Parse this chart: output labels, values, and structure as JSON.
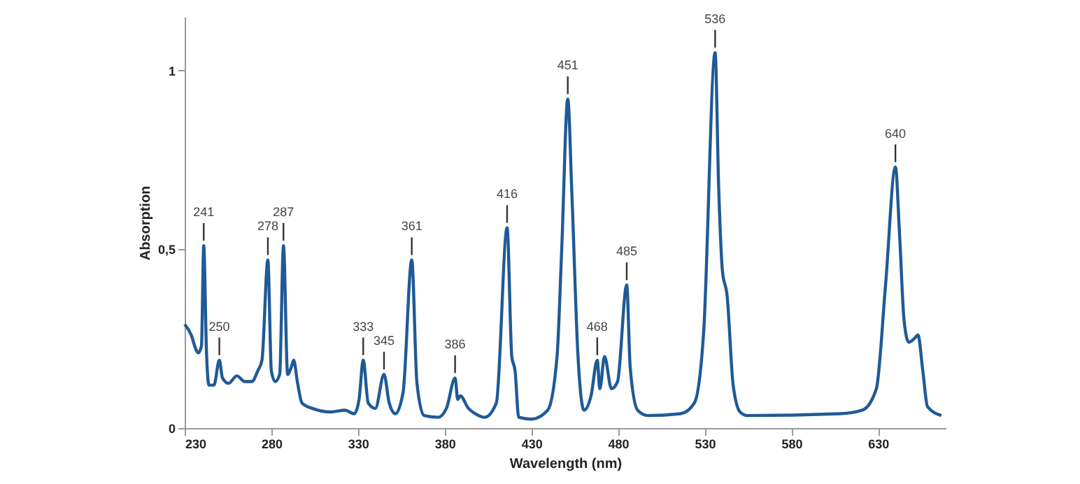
{
  "chart_data": {
    "type": "line",
    "xlabel": "Wavelength (nm)",
    "ylabel": "Absorption",
    "xlim": [
      230,
      669
    ],
    "xticks": [
      230,
      280,
      330,
      380,
      430,
      480,
      530,
      580,
      630
    ],
    "ylim": [
      0,
      1.15
    ],
    "yticks": [
      0,
      {
        "value": 0.5,
        "label": "0,5"
      },
      1
    ],
    "grid": false,
    "marker": "none",
    "line_style": "solid",
    "series": [
      {
        "color": "#1f5a96",
        "x": [
          230,
          233.8,
          236.5,
          237.8,
          239.7,
          241,
          242.6,
          244,
          246.9,
          250,
          251.8,
          255.3,
          260.1,
          264.7,
          268.7,
          272.2,
          274.6,
          278,
          280,
          282.2,
          284.8,
          287,
          289.4,
          291.5,
          292.9,
          295,
          297.7,
          303.6,
          314.4,
          322.4,
          327.8,
          330.6,
          333,
          335.9,
          340,
          345,
          348,
          351.5,
          356,
          361,
          364,
          368.1,
          376.2,
          381,
          386,
          387.5,
          389,
          393.7,
          397.7,
          403,
          409.8,
          416,
          418.7,
          420.6,
          422.7,
          430,
          439.4,
          444.8,
          447.5,
          451,
          453.4,
          456.9,
          460.4,
          464.4,
          468,
          469.5,
          472.2,
          476.2,
          479.7,
          485,
          487,
          491.3,
          497.2,
          516,
          524,
          529.4,
          536,
          538,
          540.2,
          542.9,
          546.4,
          550.4,
          554.5,
          608,
          620.9,
          629,
          634.3,
          640,
          642.4,
          645,
          647.7,
          650.9,
          653,
          655.8,
          658.5,
          666.5
        ],
        "values": [
          0.29,
          0.26,
          0.22,
          0.21,
          0.23,
          0.51,
          0.21,
          0.12,
          0.12,
          0.19,
          0.14,
          0.125,
          0.146,
          0.13,
          0.13,
          0.16,
          0.19,
          0.47,
          0.16,
          0.13,
          0.15,
          0.51,
          0.15,
          0.17,
          0.19,
          0.13,
          0.07,
          0.055,
          0.045,
          0.05,
          0.04,
          0.08,
          0.19,
          0.07,
          0.055,
          0.15,
          0.07,
          0.04,
          0.1,
          0.47,
          0.125,
          0.035,
          0.03,
          0.055,
          0.14,
          0.08,
          0.09,
          0.055,
          0.04,
          0.03,
          0.07,
          0.56,
          0.2,
          0.16,
          0.03,
          0.025,
          0.05,
          0.2,
          0.5,
          0.92,
          0.65,
          0.2,
          0.05,
          0.09,
          0.19,
          0.11,
          0.2,
          0.11,
          0.13,
          0.4,
          0.17,
          0.05,
          0.035,
          0.04,
          0.07,
          0.27,
          1.05,
          0.68,
          0.44,
          0.37,
          0.12,
          0.045,
          0.035,
          0.04,
          0.05,
          0.11,
          0.4,
          0.73,
          0.54,
          0.3,
          0.24,
          0.25,
          0.26,
          0.16,
          0.06,
          0.035
        ]
      }
    ],
    "annotations": [
      {
        "text": "241",
        "x": 241,
        "y": 0.51
      },
      {
        "text": "250",
        "x": 250,
        "y": 0.19
      },
      {
        "text": "278",
        "x": 278,
        "y": 0.47
      },
      {
        "text": "287",
        "x": 287,
        "y": 0.51
      },
      {
        "text": "333",
        "x": 333,
        "y": 0.19
      },
      {
        "text": "345",
        "x": 345,
        "y": 0.15
      },
      {
        "text": "361",
        "x": 361,
        "y": 0.47
      },
      {
        "text": "386",
        "x": 386,
        "y": 0.14
      },
      {
        "text": "416",
        "x": 416,
        "y": 0.56
      },
      {
        "text": "451",
        "x": 451,
        "y": 0.92
      },
      {
        "text": "468",
        "x": 468,
        "y": 0.19
      },
      {
        "text": "485",
        "x": 485,
        "y": 0.4
      },
      {
        "text": "536",
        "x": 536,
        "y": 1.05
      },
      {
        "text": "640",
        "x": 640,
        "y": 0.73
      }
    ]
  }
}
